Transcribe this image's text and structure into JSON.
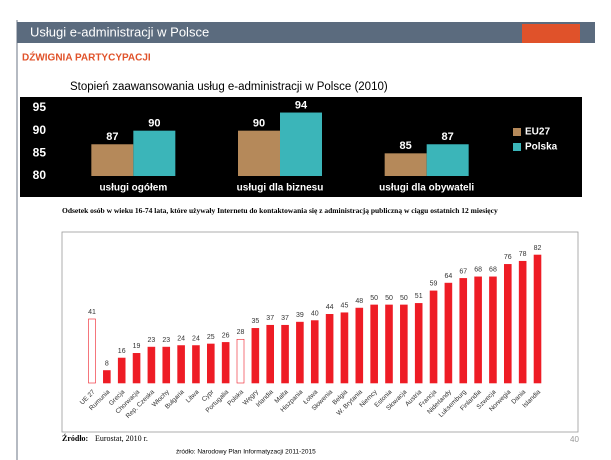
{
  "slide": {
    "header": "Usługi e-administracji w Polsce",
    "subtitle": "DŹWIGNIA PARTYCYPACJI",
    "source_label": "Źródło:",
    "source": "Eurostat, 2010 r.",
    "source2": "źródło: Narodowy Plan Informatyzacji 2011-2015",
    "page": "40"
  },
  "chart_data": [
    {
      "type": "bar",
      "title": "Stopień zaawansowania usług e-administracji w Polsce (2010)",
      "categories": [
        "usługi ogółem",
        "usługi dla biznesu",
        "usługi dla obywateli"
      ],
      "series": [
        {
          "name": "EU27",
          "color": "#b5895a",
          "values": [
            87,
            90,
            85
          ]
        },
        {
          "name": "Polska",
          "color": "#3bb5b9",
          "values": [
            90,
            94,
            87
          ]
        }
      ],
      "ylim": [
        80,
        95
      ],
      "yticks": [
        80,
        85,
        90,
        95
      ],
      "legend": "right"
    },
    {
      "type": "bar",
      "title": "Odsetek osób w wieku 16-74 lata, które używały Internetu do kontaktowania się z administracją publiczną w ciągu ostatnich 12 miesięcy",
      "categories": [
        "UE 27",
        "Rumunia",
        "Grecja",
        "Chorwacja",
        "Rep. Czeska",
        "Włochy",
        "Bułgaria",
        "Litwa",
        "Cypr",
        "Portugalia",
        "Polska",
        "Węgry",
        "Irlandia",
        "Malta",
        "Hiszpania",
        "Łotwa",
        "Słowenia",
        "Belgia",
        "W. Brytania",
        "Niemcy",
        "Estonia",
        "Słowacja",
        "Austria",
        "Francja",
        "Niderlandy",
        "Luksemburg",
        "Finlandia",
        "Szwecja",
        "Norwegia",
        "Dania",
        "Islandia"
      ],
      "values": [
        41,
        8,
        16,
        19,
        23,
        23,
        24,
        24,
        25,
        26,
        28,
        35,
        37,
        37,
        39,
        40,
        44,
        45,
        48,
        50,
        50,
        50,
        51,
        59,
        64,
        67,
        68,
        68,
        76,
        78,
        82
      ],
      "colors": [
        "#ffffff",
        "#ee1c25",
        "#ee1c25",
        "#ee1c25",
        "#ee1c25",
        "#ee1c25",
        "#ee1c25",
        "#ee1c25",
        "#ee1c25",
        "#ee1c25",
        "#ffffff",
        "#ee1c25",
        "#ee1c25",
        "#ee1c25",
        "#ee1c25",
        "#ee1c25",
        "#ee1c25",
        "#ee1c25",
        "#ee1c25",
        "#ee1c25",
        "#ee1c25",
        "#ee1c25",
        "#ee1c25",
        "#ee1c25",
        "#ee1c25",
        "#ee1c25",
        "#ee1c25",
        "#ee1c25",
        "#ee1c25",
        "#ee1c25",
        "#ee1c25"
      ],
      "edge_color": "#ee1c25"
    }
  ]
}
